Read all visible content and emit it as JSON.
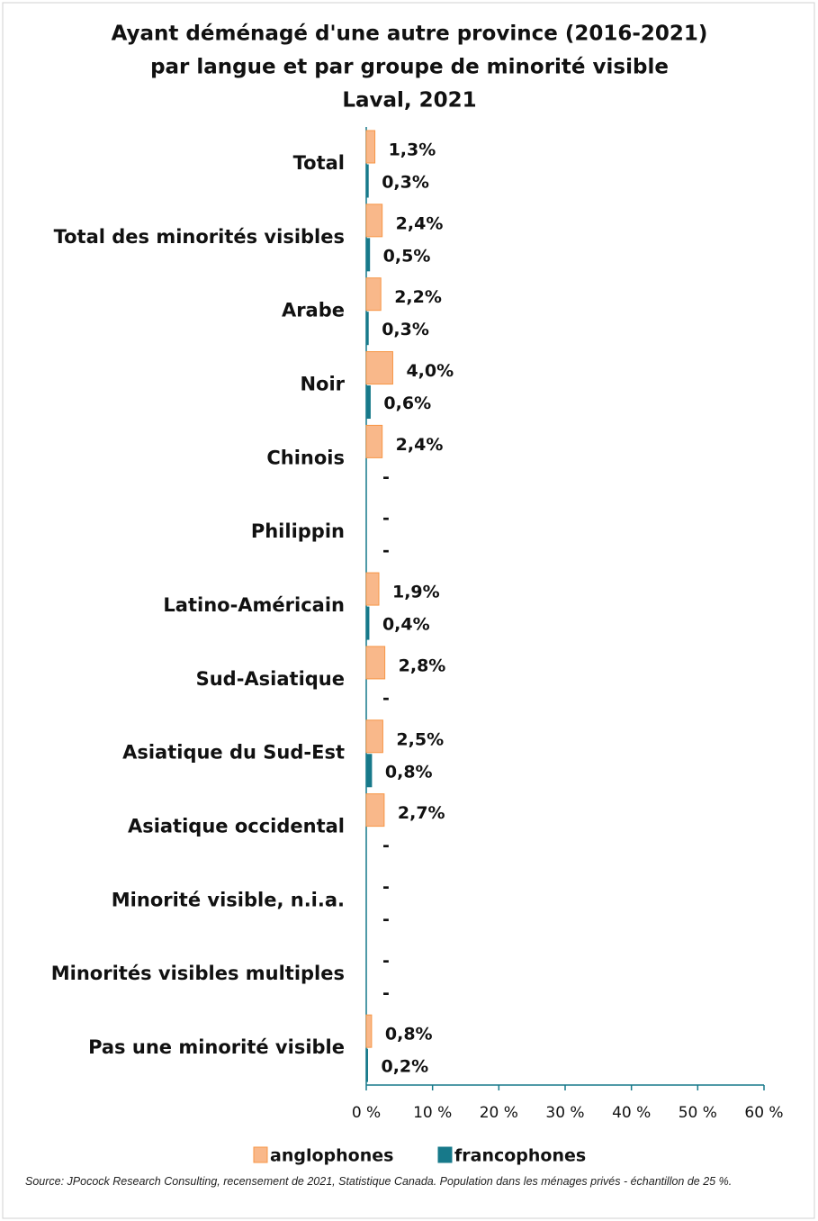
{
  "chart_data": {
    "type": "bar",
    "orientation": "horizontal",
    "title": [
      "Ayant déménagé d'une autre province (2016-2021)",
      "par langue et par groupe de minorité visible",
      "Laval, 2021"
    ],
    "categories": [
      "Total",
      "Total des minorités visibles",
      "Arabe",
      "Noir",
      "Chinois",
      "Philippin",
      "Latino-Américain",
      "Sud-Asiatique",
      "Asiatique du Sud-Est",
      "Asiatique occidental",
      "Minorité visible, n.i.a.",
      "Minorités visibles multiples",
      "Pas une minorité visible"
    ],
    "series": [
      {
        "name": "anglophones",
        "color": "#f9b88a",
        "edge": "#f79646",
        "values": [
          1.3,
          2.4,
          2.2,
          4.0,
          2.4,
          null,
          1.9,
          2.8,
          2.5,
          2.7,
          null,
          null,
          0.8
        ],
        "value_labels": [
          "1,3%",
          "2,4%",
          "2,2%",
          "4,0%",
          "2,4%",
          "-",
          "1,9%",
          "2,8%",
          "2,5%",
          "2,7%",
          "-",
          "-",
          "0,8%"
        ]
      },
      {
        "name": "francophones",
        "color": "#17798a",
        "edge": "#17798a",
        "values": [
          0.3,
          0.5,
          0.3,
          0.6,
          null,
          null,
          0.4,
          null,
          0.8,
          null,
          null,
          null,
          0.2
        ],
        "value_labels": [
          "0,3%",
          "0,5%",
          "0,3%",
          "0,6%",
          "-",
          "-",
          "0,4%",
          "-",
          "0,8%",
          "-",
          "-",
          "-",
          "0,2%"
        ]
      }
    ],
    "xlim": [
      0,
      60
    ],
    "xticks": [
      {
        "value": 0,
        "label": "0 %"
      },
      {
        "value": 10,
        "label": "10 %"
      },
      {
        "value": 20,
        "label": "20 %"
      },
      {
        "value": 30,
        "label": "30 %"
      },
      {
        "value": 40,
        "label": "40 %"
      },
      {
        "value": 50,
        "label": "50 %"
      },
      {
        "value": 60,
        "label": "60 %"
      }
    ],
    "legend": "bottom",
    "source": "Source: JPocock Research Consulting, recensement de 2021, Statistique Canada. Population dans les ménages privés - échantillon de 25 %."
  }
}
